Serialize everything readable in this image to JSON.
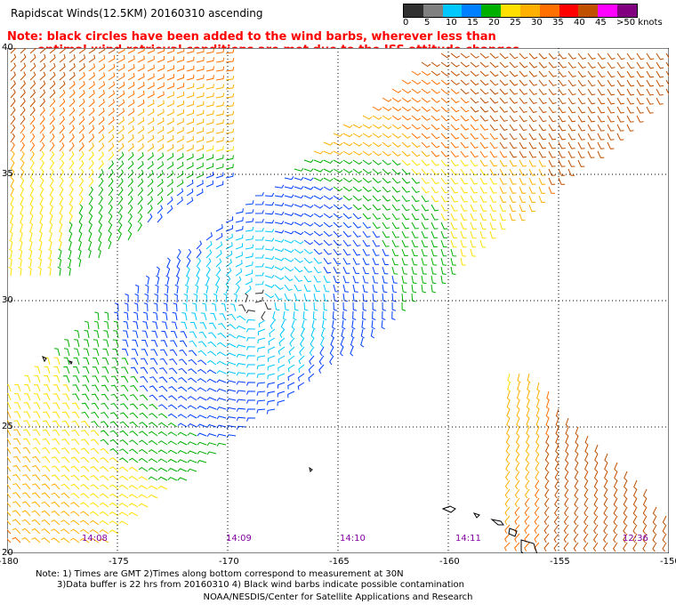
{
  "title": "Rapidscat Winds(12.5KM) 20160310 ascending",
  "note_red": [
    "Note: black circles have been added to the wind barbs, wherever less than",
    "optimal wind retrieval conditions are met due to the ISS attitude changes."
  ],
  "legend": {
    "labels": [
      "0",
      "5",
      "10",
      "15",
      "20",
      "25",
      "30",
      "35",
      "40",
      "45",
      ">50 knots"
    ],
    "colors": [
      "#303030",
      "#808080",
      "#00c8ff",
      "#0080ff",
      "#00b000",
      "#ffe000",
      "#ffb000",
      "#ff7000",
      "#ff0000",
      "#c05000",
      "#ff00ff",
      "#800080"
    ]
  },
  "map": {
    "lon_ticks": [
      "-180",
      "-175",
      "-170",
      "-165",
      "-160",
      "-155",
      "-150"
    ],
    "lat_ticks": [
      "40",
      "35",
      "30",
      "25",
      "20"
    ],
    "time_labels": [
      "14:08",
      "14:09",
      "14:10",
      "14:11",
      "12:36"
    ]
  },
  "bottom_note": [
    "Note: 1) Times are GMT 2)Times along bottom correspond to measurement at 30N",
    "3)Data buffer is 22 hrs from 20160310 4) Black wind barbs indicate possible contamination"
  ],
  "credit": "NOAA/NESDIS/Center for Satellite Applications and Research"
}
